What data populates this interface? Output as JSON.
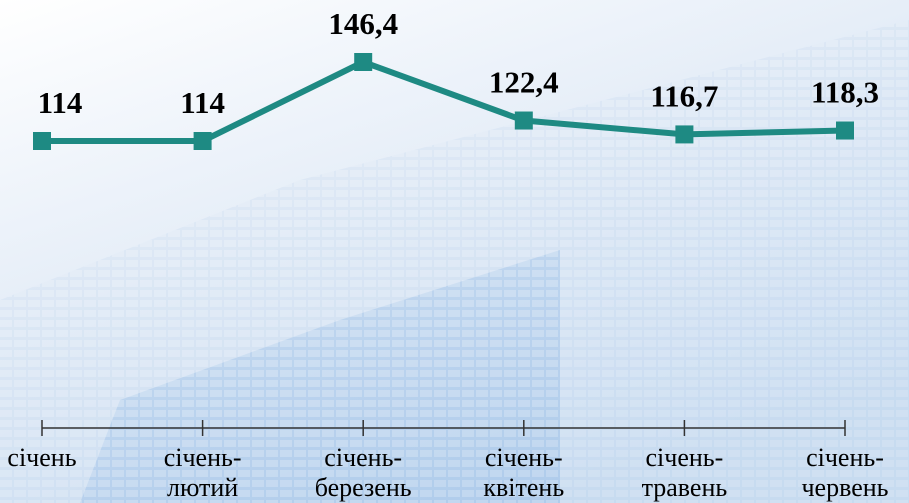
{
  "chart_data": {
    "type": "line",
    "categories": [
      [
        "січень"
      ],
      [
        "січень-",
        "лютий"
      ],
      [
        "січень-",
        "березень"
      ],
      [
        "січень-",
        "квітень"
      ],
      [
        "січень-",
        "травень"
      ],
      [
        "січень-",
        "червень"
      ]
    ],
    "values": [
      114,
      114,
      146.4,
      122.4,
      116.7,
      118.3
    ],
    "value_labels": [
      "114",
      "114",
      "146,4",
      "122,4",
      "116,7",
      "118,3"
    ],
    "color": "#1e8a83"
  }
}
